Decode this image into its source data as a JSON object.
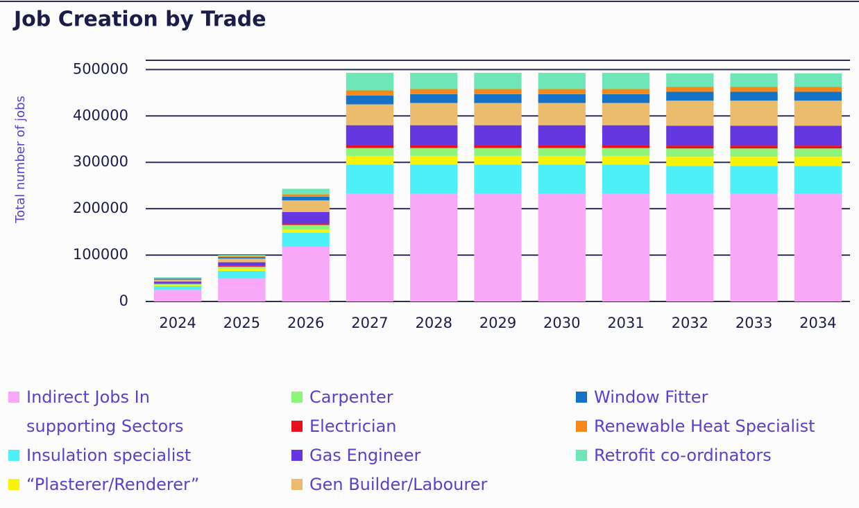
{
  "chart_data": {
    "type": "stacked_bar",
    "title": "Job Creation by Trade",
    "y_label": "Total number of jobs",
    "categories": [
      "2024",
      "2025",
      "2026",
      "2027",
      "2028",
      "2029",
      "2030",
      "2031",
      "2032",
      "2033",
      "2034"
    ],
    "ylim": [
      0,
      520000
    ],
    "yticks": [
      0,
      100000,
      200000,
      300000,
      400000,
      500000
    ],
    "grid": true,
    "series": [
      {
        "name": "Indirect Jobs In supporting Sectors",
        "color": "#f9a8f7",
        "values": [
          25000,
          50000,
          118000,
          232000,
          232000,
          232000,
          232000,
          232000,
          232000,
          232000,
          232000
        ]
      },
      {
        "name": "Insulation specialist",
        "color": "#4ef0f7",
        "values": [
          8000,
          16000,
          30000,
          63000,
          63000,
          63000,
          63000,
          63000,
          60000,
          60000,
          60000
        ]
      },
      {
        "name": "“Plasterer/Renderer”",
        "color": "#f7f20a",
        "values": [
          3000,
          5000,
          7000,
          19000,
          19000,
          19000,
          19000,
          19000,
          20000,
          20000,
          20000
        ]
      },
      {
        "name": "Carpenter",
        "color": "#8ef57a",
        "values": [
          2000,
          4000,
          10000,
          17000,
          17000,
          17000,
          17000,
          17000,
          18000,
          18000,
          18000
        ]
      },
      {
        "name": "Electrician",
        "color": "#e8101a",
        "values": [
          1000,
          1500,
          3000,
          6000,
          6000,
          6000,
          6000,
          6000,
          6000,
          6000,
          6000
        ]
      },
      {
        "name": "Gas Engineer",
        "color": "#6437e0",
        "values": [
          4000,
          8000,
          25000,
          43000,
          43000,
          43000,
          43000,
          43000,
          43000,
          43000,
          43000
        ]
      },
      {
        "name": "Gen Builder/Labourer",
        "color": "#ebbc6c",
        "values": [
          4000,
          8000,
          25000,
          45000,
          48000,
          48000,
          48000,
          48000,
          54000,
          54000,
          54000
        ]
      },
      {
        "name": "Window Fitter",
        "color": "#1472c8",
        "values": [
          2000,
          3000,
          8000,
          19000,
          19000,
          19000,
          19000,
          19000,
          19000,
          19000,
          19000
        ]
      },
      {
        "name": "Renewable Heat Specialist",
        "color": "#f58a1a",
        "values": [
          1500,
          2000,
          5000,
          11000,
          11000,
          11000,
          11000,
          11000,
          11000,
          11000,
          11000
        ]
      },
      {
        "name": "Retrofit co-ordinators",
        "color": "#6ee6b8",
        "values": [
          1500,
          2500,
          12000,
          38000,
          35000,
          35000,
          35000,
          35000,
          29000,
          29000,
          29000
        ]
      }
    ]
  }
}
